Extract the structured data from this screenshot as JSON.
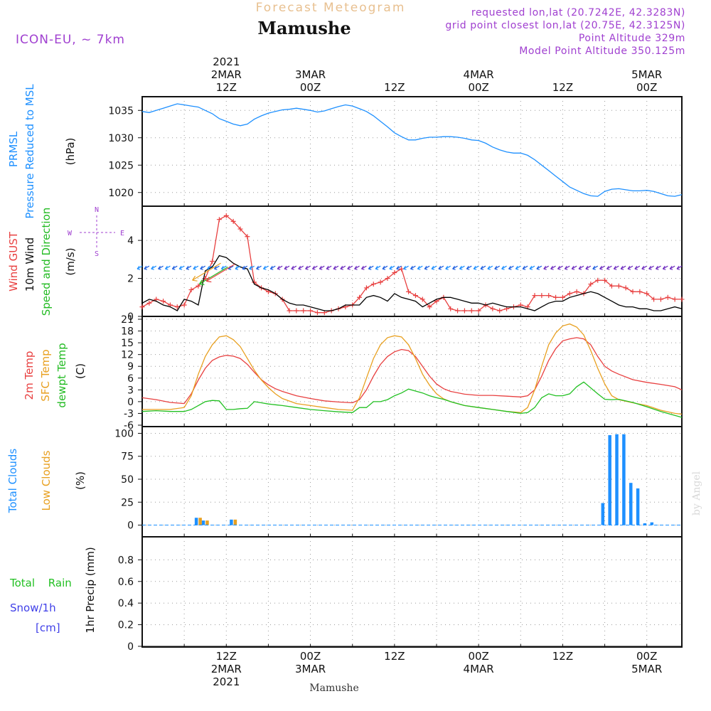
{
  "header": {
    "top_title": "Forecast Meteogram",
    "location": "Mamushe",
    "model": "ICON-EU, ~ 7km",
    "requested": "requested lon,lat (20.7242E, 42.3283N)",
    "grid_point": "grid point closest lon,lat (20.75E, 42.3125N)",
    "point_altitude": "Point Altitude 329m",
    "model_point_altitude": "Model Point Altitude 350.125m",
    "bottom_location": "Mamushe",
    "credit": "by Angel"
  },
  "colors": {
    "pressure": "#1e90ff",
    "gust": "#e84040",
    "wind": "#000000",
    "wind_arrow_green": "#22bb22",
    "temp2m": "#e84040",
    "sfc_temp": "#e8a020",
    "dewpoint": "#22c022",
    "total_clouds": "#1e90ff",
    "low_clouds": "#e8a020",
    "rain": "#22c022",
    "snow": "#4040e8",
    "compass": "#a040d0",
    "header_purple": "#a040d0",
    "title_orange": "#e8c090"
  },
  "time_axis": {
    "top_labels": [
      {
        "t": 12,
        "lines": [
          "2021",
          "2MAR",
          "12Z"
        ]
      },
      {
        "t": 24,
        "lines": [
          "3MAR",
          "00Z"
        ]
      },
      {
        "t": 36,
        "lines": [
          "12Z"
        ]
      },
      {
        "t": 48,
        "lines": [
          "4MAR",
          "00Z"
        ]
      },
      {
        "t": 60,
        "lines": [
          "12Z"
        ]
      },
      {
        "t": 72,
        "lines": [
          "5MAR",
          "00Z"
        ]
      }
    ],
    "bottom_labels": [
      {
        "t": 12,
        "lines": [
          "12Z",
          "2MAR",
          "2021"
        ]
      },
      {
        "t": 24,
        "lines": [
          "00Z",
          "3MAR"
        ]
      },
      {
        "t": 36,
        "lines": [
          "12Z"
        ]
      },
      {
        "t": 48,
        "lines": [
          "00Z",
          "4MAR"
        ]
      },
      {
        "t": 60,
        "lines": [
          "12Z"
        ]
      },
      {
        "t": 72,
        "lines": [
          "00Z",
          "5MAR"
        ]
      }
    ],
    "range": [
      0,
      77
    ]
  },
  "panel_labels": {
    "pressure": {
      "lines": [
        "PRMSL",
        "Pressure Reduced to MSL"
      ],
      "unit": "(hPa)"
    },
    "wind": {
      "gust": "Wind GUST",
      "wind10m": "10m Wind",
      "speed_dir": "Speed and Direction",
      "unit": "(m/s)",
      "compass_n": "N",
      "compass_s": "S",
      "compass_w": "W",
      "compass_e": "E"
    },
    "temp": {
      "t2m": "2m Temp",
      "sfc": "SFC Temp",
      "dewpt": "dewpt Temp",
      "unit": "(C)"
    },
    "clouds": {
      "total": "Total Clouds",
      "low": "Low Clouds",
      "unit": "(%)"
    },
    "precip": {
      "rain": "Total Rain",
      "snow": "Snow/1h",
      "snow_unit": "[cm]",
      "title": "1hr Precip (mm)"
    }
  },
  "chart_data": [
    {
      "type": "line",
      "name": "pressure",
      "ylabel": "(hPa)",
      "ylim": [
        1017.5,
        1037.5
      ],
      "yticks": [
        1020,
        1025,
        1030,
        1035
      ],
      "series": [
        {
          "name": "PRMSL",
          "x": [
            0,
            1,
            2,
            3,
            4,
            5,
            6,
            7,
            8,
            9,
            10,
            11,
            12,
            13,
            14,
            15,
            16,
            17,
            18,
            19,
            20,
            21,
            22,
            23,
            24,
            25,
            26,
            27,
            28,
            29,
            30,
            31,
            32,
            33,
            34,
            35,
            36,
            37,
            38,
            39,
            40,
            41,
            42,
            43,
            44,
            45,
            46,
            47,
            48,
            49,
            50,
            51,
            52,
            53,
            54,
            55,
            56,
            57,
            58,
            59,
            60,
            61,
            62,
            63,
            64,
            65,
            66,
            67,
            68,
            69,
            70,
            71,
            72,
            73,
            74,
            75,
            76,
            77
          ],
          "values": [
            1034.8,
            1034.6,
            1035.0,
            1035.4,
            1035.8,
            1036.2,
            1036.0,
            1035.8,
            1035.6,
            1035.0,
            1034.4,
            1033.5,
            1033.0,
            1032.5,
            1032.2,
            1032.5,
            1033.4,
            1034.0,
            1034.5,
            1034.8,
            1035.1,
            1035.2,
            1035.4,
            1035.2,
            1035.0,
            1034.7,
            1034.9,
            1035.3,
            1035.7,
            1036.0,
            1035.8,
            1035.3,
            1034.8,
            1034.0,
            1033.0,
            1032.0,
            1030.9,
            1030.2,
            1029.6,
            1029.6,
            1029.9,
            1030.1,
            1030.1,
            1030.2,
            1030.2,
            1030.1,
            1029.9,
            1029.6,
            1029.5,
            1029.0,
            1028.3,
            1027.8,
            1027.4,
            1027.2,
            1027.2,
            1026.8,
            1026.0,
            1025.0,
            1024.0,
            1023.0,
            1022.0,
            1021.0,
            1020.4,
            1019.8,
            1019.4,
            1019.3,
            1020.2,
            1020.6,
            1020.7,
            1020.5,
            1020.3,
            1020.3,
            1020.4,
            1020.2,
            1019.8,
            1019.4,
            1019.3,
            1019.6
          ]
        }
      ]
    },
    {
      "type": "line",
      "name": "wind",
      "ylabel": "(m/s)",
      "ylim": [
        0,
        5.8
      ],
      "yticks": [
        0,
        2,
        4
      ],
      "series": [
        {
          "name": "Wind GUST",
          "x": [
            0,
            1,
            2,
            3,
            4,
            5,
            6,
            7,
            8,
            9,
            10,
            11,
            12,
            13,
            14,
            15,
            16,
            17,
            18,
            19,
            20,
            21,
            22,
            23,
            24,
            25,
            26,
            27,
            28,
            29,
            30,
            31,
            32,
            33,
            34,
            35,
            36,
            37,
            38,
            39,
            40,
            41,
            42,
            43,
            44,
            45,
            46,
            47,
            48,
            49,
            50,
            51,
            52,
            53,
            54,
            55,
            56,
            57,
            58,
            59,
            60,
            61,
            62,
            63,
            64,
            65,
            66,
            67,
            68,
            69,
            70,
            71,
            72,
            73,
            74,
            75,
            76,
            77
          ],
          "values": [
            0.5,
            0.7,
            0.9,
            0.8,
            0.6,
            0.5,
            0.6,
            1.4,
            1.6,
            2.0,
            2.9,
            5.1,
            5.3,
            5.0,
            4.6,
            4.2,
            1.8,
            1.5,
            1.3,
            1.2,
            0.9,
            0.3,
            0.3,
            0.3,
            0.3,
            0.2,
            0.2,
            0.3,
            0.4,
            0.5,
            0.6,
            1.0,
            1.5,
            1.7,
            1.8,
            2.0,
            2.3,
            2.5,
            1.3,
            1.1,
            0.9,
            0.5,
            0.8,
            1.0,
            0.4,
            0.3,
            0.3,
            0.3,
            0.3,
            0.6,
            0.4,
            0.3,
            0.4,
            0.5,
            0.6,
            0.5,
            1.1,
            1.1,
            1.1,
            1.0,
            1.0,
            1.2,
            1.3,
            1.2,
            1.7,
            1.9,
            1.9,
            1.6,
            1.6,
            1.5,
            1.3,
            1.3,
            1.2,
            0.9,
            0.9,
            1.0,
            0.9,
            0.9
          ]
        },
        {
          "name": "10m Wind",
          "x": [
            0,
            1,
            2,
            3,
            4,
            5,
            6,
            7,
            8,
            9,
            10,
            11,
            12,
            13,
            14,
            15,
            16,
            17,
            18,
            19,
            20,
            21,
            22,
            23,
            24,
            25,
            26,
            27,
            28,
            29,
            30,
            31,
            32,
            33,
            34,
            35,
            36,
            37,
            38,
            39,
            40,
            41,
            42,
            43,
            44,
            45,
            46,
            47,
            48,
            49,
            50,
            51,
            52,
            53,
            54,
            55,
            56,
            57,
            58,
            59,
            60,
            61,
            62,
            63,
            64,
            65,
            66,
            67,
            68,
            69,
            70,
            71,
            72,
            73,
            74,
            75,
            76,
            77
          ],
          "values": [
            0.7,
            0.9,
            0.8,
            0.6,
            0.5,
            0.3,
            0.9,
            0.8,
            0.6,
            2.4,
            2.6,
            3.2,
            3.1,
            2.8,
            2.6,
            2.5,
            1.7,
            1.5,
            1.4,
            1.2,
            0.9,
            0.7,
            0.6,
            0.6,
            0.5,
            0.4,
            0.3,
            0.3,
            0.4,
            0.6,
            0.6,
            0.6,
            1.0,
            1.1,
            1.0,
            0.8,
            1.2,
            1.0,
            0.9,
            0.8,
            0.5,
            0.7,
            0.9,
            1.0,
            1.0,
            0.9,
            0.8,
            0.7,
            0.7,
            0.6,
            0.7,
            0.6,
            0.5,
            0.5,
            0.5,
            0.4,
            0.3,
            0.5,
            0.7,
            0.8,
            0.8,
            1.0,
            1.1,
            1.2,
            1.3,
            1.2,
            1.0,
            0.8,
            0.6,
            0.5,
            0.5,
            0.4,
            0.4,
            0.3,
            0.3,
            0.4,
            0.5,
            0.4
          ]
        }
      ]
    },
    {
      "type": "line",
      "name": "temperature",
      "ylabel": "(C)",
      "ylim": [
        -6,
        21
      ],
      "yticks": [
        -6,
        -3,
        0,
        3,
        6,
        9,
        12,
        15,
        18,
        21
      ],
      "series": [
        {
          "name": "2m Temp",
          "x": [
            0,
            2,
            4,
            6,
            7,
            8,
            9,
            10,
            11,
            12,
            13,
            14,
            15,
            16,
            17,
            18,
            19,
            20,
            22,
            24,
            26,
            28,
            30,
            31,
            32,
            33,
            34,
            35,
            36,
            37,
            38,
            39,
            40,
            41,
            42,
            43,
            44,
            46,
            48,
            50,
            52,
            54,
            55,
            56,
            57,
            58,
            59,
            60,
            61,
            62,
            63,
            64,
            65,
            66,
            67,
            68,
            70,
            72,
            74,
            76,
            77
          ],
          "values": [
            1.0,
            0.5,
            -0.2,
            -0.5,
            2.0,
            5.5,
            8.5,
            10.5,
            11.4,
            11.8,
            11.6,
            11.0,
            9.5,
            7.5,
            5.6,
            4.3,
            3.3,
            2.6,
            1.5,
            0.8,
            0.2,
            -0.1,
            -0.3,
            0.5,
            3.0,
            6.5,
            9.5,
            11.5,
            12.7,
            13.3,
            13.0,
            11.5,
            9.0,
            6.5,
            4.5,
            3.3,
            2.6,
            1.9,
            1.6,
            1.6,
            1.4,
            1.2,
            1.5,
            3.0,
            6.5,
            10.5,
            13.5,
            15.5,
            16.0,
            16.3,
            16.0,
            14.5,
            11.5,
            9.0,
            7.8,
            7.0,
            5.6,
            4.9,
            4.4,
            3.8,
            3.0
          ]
        },
        {
          "name": "SFC Temp",
          "x": [
            0,
            2,
            4,
            6,
            7,
            8,
            9,
            10,
            11,
            12,
            13,
            14,
            15,
            16,
            17,
            18,
            19,
            20,
            22,
            24,
            26,
            28,
            30,
            31,
            32,
            33,
            34,
            35,
            36,
            37,
            38,
            39,
            40,
            41,
            42,
            43,
            44,
            46,
            48,
            50,
            52,
            54,
            55,
            56,
            57,
            58,
            59,
            60,
            61,
            62,
            63,
            64,
            65,
            66,
            67,
            68,
            70,
            72,
            74,
            76,
            77
          ],
          "values": [
            -2.0,
            -2.0,
            -2.0,
            -1.5,
            1.5,
            7.0,
            11.5,
            14.5,
            16.5,
            16.8,
            15.8,
            14.0,
            11.0,
            8.0,
            5.5,
            3.6,
            2.0,
            0.8,
            -0.5,
            -1.0,
            -1.5,
            -2.0,
            -2.2,
            1.0,
            6.0,
            11.0,
            14.5,
            16.3,
            16.8,
            16.5,
            14.5,
            11.0,
            7.0,
            4.2,
            2.0,
            0.7,
            0.0,
            -1.0,
            -1.5,
            -2.0,
            -2.5,
            -2.8,
            -1.5,
            3.0,
            9.0,
            14.5,
            17.5,
            19.3,
            19.8,
            19.0,
            17.0,
            13.0,
            8.5,
            4.5,
            1.5,
            0.5,
            -0.3,
            -1.0,
            -2.2,
            -3.0,
            -3.2
          ]
        },
        {
          "name": "dewpt Temp",
          "x": [
            0,
            2,
            4,
            6,
            7,
            8,
            9,
            10,
            11,
            12,
            13,
            14,
            15,
            16,
            17,
            18,
            19,
            20,
            22,
            24,
            26,
            28,
            30,
            31,
            32,
            33,
            34,
            35,
            36,
            37,
            38,
            39,
            40,
            41,
            42,
            43,
            44,
            46,
            48,
            50,
            52,
            54,
            55,
            56,
            57,
            58,
            59,
            60,
            61,
            62,
            63,
            64,
            65,
            66,
            67,
            68,
            70,
            72,
            74,
            76,
            77
          ],
          "values": [
            -2.5,
            -2.3,
            -2.5,
            -2.5,
            -2.0,
            -1.0,
            0.0,
            0.3,
            0.2,
            -2.0,
            -2.0,
            -1.8,
            -1.7,
            0.0,
            -0.3,
            -0.6,
            -0.8,
            -1.0,
            -1.5,
            -2.0,
            -2.3,
            -2.6,
            -2.8,
            -1.5,
            -1.5,
            0.0,
            0.0,
            0.5,
            1.5,
            2.2,
            3.2,
            2.7,
            2.2,
            1.5,
            1.0,
            0.6,
            0.0,
            -1.0,
            -1.5,
            -2.0,
            -2.5,
            -3.0,
            -2.8,
            -1.5,
            1.0,
            2.0,
            1.5,
            1.5,
            2.0,
            3.8,
            5.0,
            3.5,
            2.0,
            0.6,
            0.5,
            0.6,
            -0.2,
            -1.3,
            -2.5,
            -3.5,
            -4.0
          ]
        }
      ]
    },
    {
      "type": "bar",
      "name": "clouds",
      "ylabel": "(%)",
      "ylim": [
        -5,
        105
      ],
      "yticks": [
        0,
        25,
        50,
        75,
        100
      ],
      "series": [
        {
          "name": "Total Clouds",
          "x": [
            8,
            9,
            13,
            66,
            67,
            68,
            69,
            70,
            71,
            72,
            73
          ],
          "values": [
            8,
            5,
            6,
            24,
            98,
            99,
            99,
            46,
            40,
            2,
            3
          ]
        },
        {
          "name": "Low Clouds",
          "x": [
            8,
            9,
            13
          ],
          "values": [
            8,
            5,
            6
          ]
        }
      ]
    },
    {
      "type": "line",
      "name": "precipitation",
      "ylabel": "1hr Precip (mm)",
      "ylim": [
        0,
        1.0
      ],
      "yticks": [
        0,
        0.2,
        0.4,
        0.6,
        0.8
      ],
      "series": [
        {
          "name": "Total Rain",
          "x": [
            0,
            77
          ],
          "values": [
            0,
            0
          ]
        },
        {
          "name": "Snow/1h",
          "x": [
            0,
            77
          ],
          "values": [
            0,
            0
          ]
        }
      ]
    }
  ]
}
